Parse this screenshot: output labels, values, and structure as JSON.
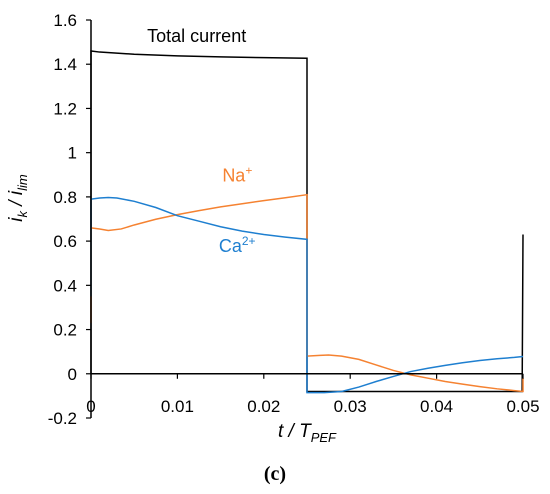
{
  "chart_data": {
    "type": "line",
    "panel_label": "(c)",
    "xlabel": {
      "main": "t",
      "sep": " / ",
      "sym": "T",
      "sub": "PEF"
    },
    "ylabel": {
      "a": "i",
      "a_sub": "k",
      "sep": " / ",
      "b": "i",
      "b_sub": "lim"
    },
    "xlim": [
      0,
      0.05
    ],
    "ylim": [
      -0.2,
      1.6
    ],
    "xticks": [
      0,
      0.01,
      0.02,
      0.03,
      0.04,
      0.05
    ],
    "xtick_labels": [
      "0",
      "0.01",
      "0.02",
      "0.03",
      "0.04",
      "0.05"
    ],
    "yticks": [
      -0.2,
      0,
      0.2,
      0.4,
      0.6,
      0.8,
      1,
      1.2,
      1.4,
      1.6
    ],
    "ytick_labels": [
      "-0.2",
      "0",
      "0.2",
      "0.4",
      "0.6",
      "0.8",
      "1",
      "1.2",
      "1.4",
      "1.6"
    ],
    "grid": false,
    "colors": {
      "total": "#000000",
      "na": "#f58231",
      "ca": "#1e7fd0",
      "axis": "#000000"
    },
    "annotations": {
      "total": {
        "text": "Total current",
        "x": 0.0065,
        "y": 1.5
      },
      "na": {
        "base": "Na",
        "sup": "+",
        "x": 0.0152,
        "y": 0.87
      },
      "ca": {
        "base": "Ca",
        "sup": "2+",
        "x": 0.0148,
        "y": 0.55
      }
    },
    "series": [
      {
        "key": "total",
        "points": [
          [
            0,
            0
          ],
          [
            0,
            1.46
          ],
          [
            0.001,
            1.455
          ],
          [
            0.005,
            1.445
          ],
          [
            0.01,
            1.438
          ],
          [
            0.015,
            1.433
          ],
          [
            0.02,
            1.43
          ],
          [
            0.025,
            1.427
          ],
          [
            0.025,
            -0.08
          ],
          [
            0.03,
            -0.08
          ],
          [
            0.035,
            -0.08
          ],
          [
            0.04,
            -0.08
          ],
          [
            0.045,
            -0.08
          ],
          [
            0.0499,
            -0.08
          ],
          [
            0.05,
            0.63
          ]
        ]
      },
      {
        "key": "na",
        "points": [
          [
            0,
            0.23
          ],
          [
            0,
            0.66
          ],
          [
            0.001,
            0.655
          ],
          [
            0.002,
            0.648
          ],
          [
            0.0035,
            0.655
          ],
          [
            0.005,
            0.673
          ],
          [
            0.0075,
            0.699
          ],
          [
            0.01,
            0.72
          ],
          [
            0.0125,
            0.738
          ],
          [
            0.015,
            0.755
          ],
          [
            0.0175,
            0.769
          ],
          [
            0.02,
            0.783
          ],
          [
            0.0225,
            0.796
          ],
          [
            0.025,
            0.81
          ],
          [
            0.025,
            0.08
          ],
          [
            0.0265,
            0.083
          ],
          [
            0.0275,
            0.085
          ],
          [
            0.029,
            0.08
          ],
          [
            0.031,
            0.065
          ],
          [
            0.033,
            0.04
          ],
          [
            0.035,
            0.015
          ],
          [
            0.037,
            -0.005
          ],
          [
            0.039,
            -0.02
          ],
          [
            0.041,
            -0.035
          ],
          [
            0.043,
            -0.047
          ],
          [
            0.045,
            -0.058
          ],
          [
            0.047,
            -0.068
          ],
          [
            0.049,
            -0.076
          ],
          [
            0.05,
            -0.08
          ],
          [
            0.05,
            -0.02
          ]
        ]
      },
      {
        "key": "ca",
        "points": [
          [
            0,
            0.35
          ],
          [
            0,
            0.79
          ],
          [
            0.001,
            0.795
          ],
          [
            0.002,
            0.797
          ],
          [
            0.003,
            0.795
          ],
          [
            0.005,
            0.78
          ],
          [
            0.0075,
            0.752
          ],
          [
            0.01,
            0.715
          ],
          [
            0.0125,
            0.69
          ],
          [
            0.015,
            0.665
          ],
          [
            0.0175,
            0.645
          ],
          [
            0.02,
            0.63
          ],
          [
            0.0225,
            0.618
          ],
          [
            0.025,
            0.608
          ],
          [
            0.025,
            -0.085
          ],
          [
            0.027,
            -0.085
          ],
          [
            0.029,
            -0.08
          ],
          [
            0.031,
            -0.06
          ],
          [
            0.033,
            -0.035
          ],
          [
            0.035,
            -0.012
          ],
          [
            0.037,
            0.01
          ],
          [
            0.039,
            0.025
          ],
          [
            0.041,
            0.038
          ],
          [
            0.043,
            0.05
          ],
          [
            0.045,
            0.06
          ],
          [
            0.047,
            0.068
          ],
          [
            0.049,
            0.074
          ],
          [
            0.05,
            0.078
          ]
        ]
      }
    ]
  }
}
